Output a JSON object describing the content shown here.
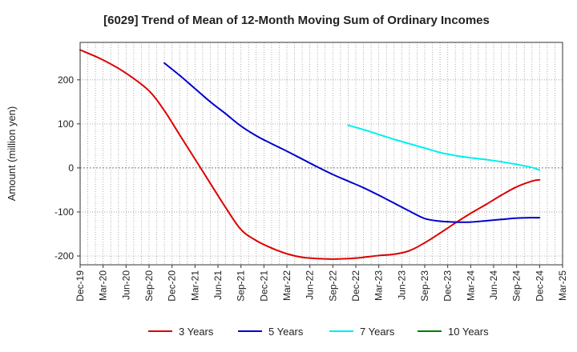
{
  "chart_data": {
    "type": "line",
    "title": "[6029]  Trend of Mean of 12-Month Moving Sum of Ordinary Incomes",
    "xlabel": "",
    "ylabel": "Amount (million yen)",
    "ylim": [
      -220,
      285
    ],
    "yticks": [
      -200,
      -100,
      0,
      100,
      200
    ],
    "ytick_labels": [
      "-200",
      "-100",
      "0",
      "100",
      "200"
    ],
    "xlim": [
      0,
      63
    ],
    "xtick_labels": [
      "Dec-19",
      "Mar-20",
      "Jun-20",
      "Sep-20",
      "Dec-20",
      "Mar-21",
      "Jun-21",
      "Sep-21",
      "Dec-21",
      "Mar-22",
      "Jun-22",
      "Sep-22",
      "Dec-22",
      "Mar-23",
      "Jun-23",
      "Sep-23",
      "Dec-23",
      "Mar-24",
      "Jun-24",
      "Sep-24",
      "Dec-24",
      "Mar-25"
    ],
    "grid": true,
    "legend_position": "bottom",
    "series": [
      {
        "name": "3 Years",
        "color": "#dd0000",
        "x": [
          0,
          3,
          6,
          9,
          11,
          13,
          15,
          17,
          19,
          21,
          23,
          25,
          27,
          29,
          31,
          33,
          35,
          37,
          39,
          41,
          43,
          45,
          47,
          49,
          51,
          53,
          55,
          57,
          59,
          60
        ],
        "values": [
          268,
          245,
          215,
          175,
          130,
          75,
          20,
          -35,
          -90,
          -140,
          -165,
          -182,
          -195,
          -203,
          -206,
          -207,
          -206,
          -203,
          -199,
          -196,
          -188,
          -170,
          -148,
          -125,
          -103,
          -83,
          -62,
          -43,
          -30,
          -27
        ]
      },
      {
        "name": "5 Years",
        "color": "#0000cc",
        "x": [
          11,
          13,
          15,
          17,
          19,
          21,
          23,
          25,
          27,
          29,
          31,
          33,
          35,
          37,
          39,
          41,
          43,
          45,
          47,
          49,
          51,
          53,
          55,
          57,
          59,
          60
        ],
        "values": [
          238,
          210,
          180,
          150,
          123,
          95,
          73,
          55,
          38,
          20,
          2,
          -15,
          -30,
          -45,
          -62,
          -80,
          -98,
          -115,
          -121,
          -123,
          -123,
          -120,
          -117,
          -114,
          -113,
          -113
        ]
      },
      {
        "name": "7 Years",
        "color": "#00eeee",
        "x": [
          35,
          37,
          39,
          41,
          43,
          45,
          47,
          49,
          51,
          53,
          55,
          57,
          59,
          60
        ],
        "values": [
          97,
          87,
          76,
          65,
          55,
          45,
          35,
          28,
          23,
          19,
          14,
          8,
          1,
          -5
        ]
      },
      {
        "name": "10 Years",
        "color": "#008000",
        "x": [],
        "values": []
      }
    ]
  }
}
